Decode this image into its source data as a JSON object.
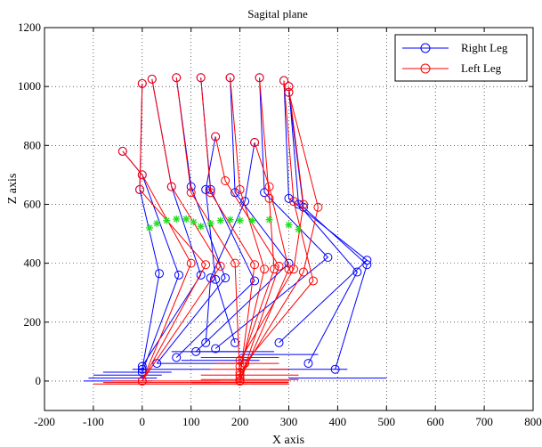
{
  "chart_data": {
    "type": "line",
    "title": "Sagital plane",
    "xlabel": "X axis",
    "ylabel": "Z axis",
    "xlim": [
      -200,
      800
    ],
    "ylim": [
      -100,
      1200
    ],
    "xticks": [
      -200,
      -100,
      0,
      100,
      200,
      300,
      400,
      500,
      600,
      700,
      800
    ],
    "yticks": [
      0,
      200,
      400,
      600,
      800,
      1000,
      1200
    ],
    "grid": true,
    "legend_position": "top-right",
    "colors": {
      "right": "#0000ff",
      "left": "#ff0000",
      "marker": "#22dd22"
    },
    "series": [
      {
        "name": "Right Leg",
        "color": "#0000ff",
        "frames": [
          [
            [
              -40,
              780
            ],
            [
              0,
              700
            ],
            [
              75,
              360
            ],
            [
              0,
              30
            ],
            [
              -120,
              0
            ],
            [
              20,
              0
            ]
          ],
          [
            [
              0,
              1010
            ],
            [
              -5,
              650
            ],
            [
              35,
              365
            ],
            [
              0,
              40
            ],
            [
              -110,
              10
            ],
            [
              30,
              10
            ]
          ],
          [
            [
              20,
              1025
            ],
            [
              60,
              660
            ],
            [
              120,
              360
            ],
            [
              0,
              50
            ],
            [
              -100,
              20
            ],
            [
              40,
              20
            ]
          ],
          [
            [
              70,
              1030
            ],
            [
              100,
              660
            ],
            [
              170,
              350
            ],
            [
              30,
              60
            ],
            [
              -80,
              30
            ],
            [
              60,
              30
            ]
          ],
          [
            [
              120,
              1030
            ],
            [
              140,
              650
            ],
            [
              230,
              340
            ],
            [
              70,
              80
            ],
            [
              -20,
              40
            ],
            [
              140,
              40
            ]
          ],
          [
            [
              180,
              1030
            ],
            [
              190,
              640
            ],
            [
              300,
              400
            ],
            [
              110,
              100
            ],
            [
              30,
              60
            ],
            [
              190,
              60
            ]
          ],
          [
            [
              240,
              1030
            ],
            [
              250,
              640
            ],
            [
              380,
              420
            ],
            [
              150,
              110
            ],
            [
              80,
              70
            ],
            [
              240,
              70
            ]
          ],
          [
            [
              290,
              1020
            ],
            [
              300,
              620
            ],
            [
              460,
              410
            ],
            [
              280,
              130
            ],
            [
              200,
              90
            ],
            [
              360,
              90
            ]
          ],
          [
            [
              300,
              1000
            ],
            [
              320,
              600
            ],
            [
              440,
              370
            ],
            [
              340,
              60
            ],
            [
              260,
              40
            ],
            [
              420,
              40
            ]
          ],
          [
            [
              300,
              980
            ],
            [
              330,
              590
            ],
            [
              460,
              395
            ],
            [
              395,
              40
            ],
            [
              300,
              10
            ],
            [
              500,
              10
            ]
          ],
          [
            [
              150,
              830
            ],
            [
              130,
              650
            ],
            [
              150,
              345
            ],
            [
              190,
              130
            ],
            [
              110,
              100
            ],
            [
              270,
              100
            ]
          ],
          [
            [
              230,
              810
            ],
            [
              210,
              610
            ],
            [
              140,
              350
            ],
            [
              130,
              130
            ],
            [
              60,
              100
            ],
            [
              220,
              100
            ]
          ]
        ]
      },
      {
        "name": "Left Leg",
        "color": "#ff0000",
        "frames": [
          [
            [
              -40,
              780
            ],
            [
              0,
              700
            ],
            [
              100,
              400
            ],
            [
              0,
              0
            ],
            [
              -100,
              -10
            ],
            [
              120,
              -10
            ]
          ],
          [
            [
              0,
              1010
            ],
            [
              -5,
              650
            ],
            [
              130,
              395
            ],
            [
              0,
              0
            ],
            [
              -80,
              -5
            ],
            [
              140,
              -5
            ]
          ],
          [
            [
              20,
              1025
            ],
            [
              60,
              660
            ],
            [
              160,
              390
            ],
            [
              0,
              0
            ],
            [
              -60,
              0
            ],
            [
              160,
              0
            ]
          ],
          [
            [
              70,
              1030
            ],
            [
              100,
              640
            ],
            [
              190,
              400
            ],
            [
              200,
              0
            ],
            [
              100,
              -5
            ],
            [
              300,
              -5
            ]
          ],
          [
            [
              120,
              1030
            ],
            [
              140,
              640
            ],
            [
              230,
              395
            ],
            [
              200,
              10
            ],
            [
              120,
              5
            ],
            [
              320,
              5
            ]
          ],
          [
            [
              180,
              1030
            ],
            [
              200,
              650
            ],
            [
              250,
              380
            ],
            [
              200,
              30
            ],
            [
              120,
              20
            ],
            [
              320,
              20
            ]
          ],
          [
            [
              240,
              1030
            ],
            [
              260,
              620
            ],
            [
              270,
              380
            ],
            [
              200,
              50
            ],
            [
              140,
              40
            ],
            [
              300,
              40
            ]
          ],
          [
            [
              290,
              1020
            ],
            [
              310,
              610
            ],
            [
              350,
              340
            ],
            [
              210,
              60
            ],
            [
              150,
              60
            ],
            [
              280,
              60
            ]
          ],
          [
            [
              300,
              1000
            ],
            [
              330,
              600
            ],
            [
              310,
              380
            ],
            [
              200,
              70
            ],
            [
              120,
              80
            ],
            [
              280,
              80
            ]
          ],
          [
            [
              300,
              980
            ],
            [
              360,
              590
            ],
            [
              330,
              370
            ],
            [
              200,
              20
            ],
            [
              100,
              0
            ],
            [
              300,
              0
            ]
          ],
          [
            [
              150,
              830
            ],
            [
              170,
              680
            ],
            [
              280,
              390
            ],
            [
              200,
              0
            ],
            [
              120,
              -10
            ],
            [
              300,
              -10
            ]
          ],
          [
            [
              230,
              810
            ],
            [
              260,
              660
            ],
            [
              300,
              380
            ],
            [
              200,
              0
            ],
            [
              100,
              -5
            ],
            [
              300,
              -5
            ]
          ]
        ]
      }
    ],
    "markers": [
      [
        15,
        520
      ],
      [
        30,
        535
      ],
      [
        50,
        545
      ],
      [
        70,
        550
      ],
      [
        90,
        550
      ],
      [
        105,
        540
      ],
      [
        120,
        525
      ],
      [
        140,
        535
      ],
      [
        160,
        545
      ],
      [
        180,
        548
      ],
      [
        200,
        545
      ],
      [
        225,
        545
      ],
      [
        260,
        548
      ],
      [
        300,
        530
      ],
      [
        320,
        515
      ]
    ],
    "legend": [
      {
        "label": "Right Leg",
        "color": "#0000ff"
      },
      {
        "label": "Left Leg",
        "color": "#ff0000"
      }
    ]
  }
}
